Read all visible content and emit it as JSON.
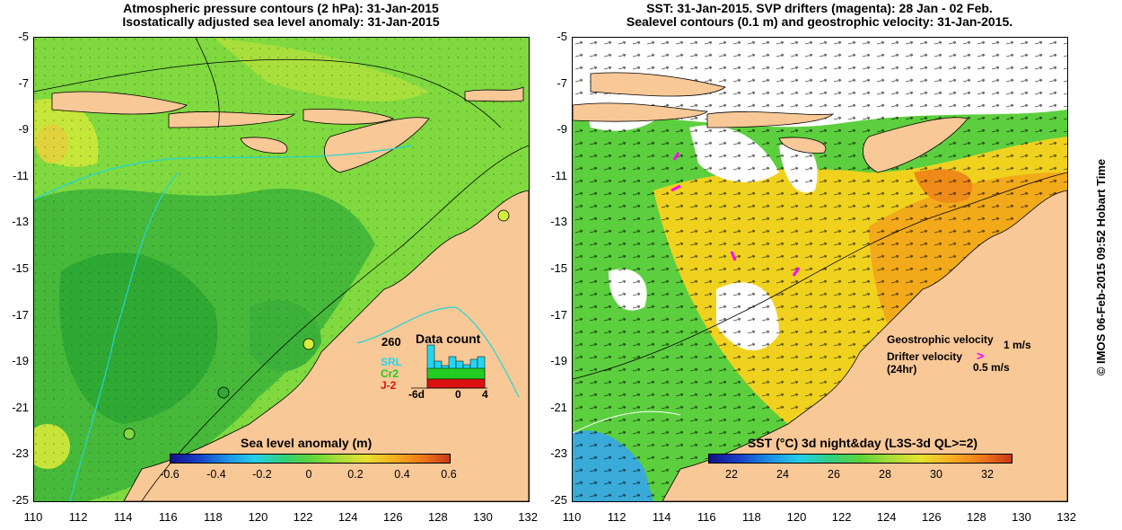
{
  "left_panel": {
    "title_line1": "Atmospheric pressure contours (2 hPa): 31-Jan-2015",
    "title_line2": "Isostatically adjusted sea level anomaly: 31-Jan-2015",
    "colorbar_label": "Sea level anomaly (m)",
    "colorbar_ticks": [
      "-0.6",
      "-0.4",
      "-0.2",
      "0",
      "0.2",
      "0.4",
      "0.6"
    ],
    "inset": {
      "count_label": "260",
      "title": "Data count",
      "series": [
        "SRL",
        "Cr2",
        "J-2"
      ],
      "series_colors": [
        "#22d6f0",
        "#22cc22",
        "#dd1111"
      ],
      "x_ticks": [
        "-6d",
        "0",
        "4"
      ]
    }
  },
  "right_panel": {
    "title_line1": "SST: 31-Jan-2015. SVP drifters (magenta): 28 Jan - 02 Feb.",
    "title_line2": "Sealevel contours (0.1 m) and geostrophic velocity: 31-Jan-2015.",
    "colorbar_label": "SST (°C) 3d night&day (L3S-3d QL>=2)",
    "colorbar_ticks": [
      "22",
      "24",
      "26",
      "28",
      "30",
      "32"
    ],
    "legend": {
      "geostrophic_label": "Geostrophic velocity",
      "geostrophic_scale": "1 m/s",
      "drifter_label": "Drifter velocity",
      "drifter_period": "(24hr)",
      "drifter_scale": "0.5 m/s"
    }
  },
  "axes": {
    "y_ticks": [
      "-5",
      "-7",
      "-9",
      "-11",
      "-13",
      "-15",
      "-17",
      "-19",
      "-21",
      "-23",
      "-25"
    ],
    "x_ticks": [
      "110",
      "112",
      "114",
      "116",
      "118",
      "120",
      "122",
      "124",
      "126",
      "128",
      "130",
      "132"
    ]
  },
  "credit": "© IMOS 06-Feb-2015 09:52 Hobart Time",
  "colors": {
    "land": "#f9c897",
    "ocean_green": "#6fd63a",
    "coast_cyan": "#22d6d6",
    "drifter_magenta": "#ff00ff"
  }
}
